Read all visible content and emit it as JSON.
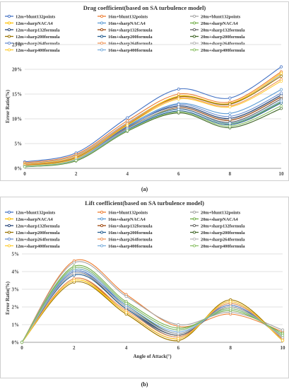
{
  "panels": [
    {
      "caption": "(a)",
      "chart_data": {
        "type": "line",
        "title": "Drag coefficient(based on SA turbulence model)",
        "xlabel": "Angle of Attack(°)",
        "ylabel": "Error Ratio(%)",
        "x": [
          0,
          2,
          4,
          6,
          8,
          10
        ],
        "xticks": [
          "0",
          "2",
          "4",
          "6",
          "8",
          "10"
        ],
        "yticks": [
          "0%",
          "5%",
          "10%",
          "15%",
          "20%",
          "25%"
        ],
        "xlim": [
          0,
          10
        ],
        "ylim": [
          0,
          25
        ],
        "grid": true,
        "legend_position": "top",
        "series": [
          {
            "name": "12m+blunt132points",
            "color": "#4472c4",
            "values": [
              1.3,
              3.1,
              10.2,
              16.0,
              14.2,
              20.5
            ]
          },
          {
            "name": "16m+blunt132points",
            "color": "#ed7d31",
            "values": [
              1.1,
              2.8,
              9.6,
              15.0,
              13.4,
              19.5
            ]
          },
          {
            "name": "20m+blunt132points",
            "color": "#a5a5a5",
            "values": [
              0.9,
              2.6,
              9.2,
              14.5,
              12.9,
              18.9
            ]
          },
          {
            "name": "12m+sharpNACA4",
            "color": "#ffc000",
            "values": [
              0.8,
              2.4,
              9.0,
              14.6,
              13.1,
              19.2
            ]
          },
          {
            "name": "16m+sharpNACA4",
            "color": "#5b9bd5",
            "values": [
              0.7,
              2.2,
              8.6,
              13.1,
              11.1,
              15.9
            ]
          },
          {
            "name": "20m+sharpNACA4",
            "color": "#70ad47",
            "values": [
              0.6,
              2.0,
              8.2,
              12.0,
              9.0,
              13.4
            ]
          },
          {
            "name": "12m+sharp132formula",
            "color": "#264478",
            "values": [
              0.6,
              2.0,
              8.4,
              12.6,
              10.1,
              14.8
            ]
          },
          {
            "name": "16m+sharp132formula",
            "color": "#9e480e",
            "values": [
              0.5,
              1.9,
              8.1,
              12.3,
              9.7,
              14.4
            ]
          },
          {
            "name": "20m+sharp132formula",
            "color": "#636363",
            "values": [
              0.5,
              1.8,
              7.9,
              12.0,
              9.3,
              14.0
            ]
          },
          {
            "name": "12m+sharp200formula",
            "color": "#997300",
            "values": [
              0.6,
              2.1,
              8.8,
              14.4,
              13.0,
              18.6
            ]
          },
          {
            "name": "16m+sharp200formula",
            "color": "#255e91",
            "values": [
              0.4,
              1.7,
              7.8,
              11.6,
              8.8,
              13.2
            ]
          },
          {
            "name": "20m+sharp200formula",
            "color": "#43682b",
            "values": [
              0.3,
              1.5,
              7.5,
              11.2,
              8.2,
              12.1
            ]
          },
          {
            "name": "12m+sharp264formula",
            "color": "#698ed0",
            "values": [
              0.5,
              1.9,
              8.3,
              12.9,
              10.5,
              15.2
            ]
          },
          {
            "name": "16m+sharp264formula",
            "color": "#f1975a",
            "values": [
              0.7,
              2.3,
              9.0,
              14.2,
              12.6,
              18.0
            ]
          },
          {
            "name": "20m+sharp264formula",
            "color": "#b7b7b7",
            "values": [
              0.4,
              1.8,
              8.0,
              12.4,
              9.9,
              14.6
            ]
          },
          {
            "name": "12m+sharp400formula",
            "color": "#ffcd33",
            "values": [
              0.5,
              2.0,
              8.7,
              14.0,
              12.4,
              17.6
            ]
          },
          {
            "name": "16m+sharp400formula",
            "color": "#7cafdd",
            "values": [
              0.4,
              1.7,
              7.9,
              11.9,
              9.1,
              13.6
            ]
          },
          {
            "name": "20m+sharp400formula",
            "color": "#8cc168",
            "values": [
              0.3,
              1.6,
              7.6,
              11.4,
              8.5,
              12.6
            ]
          }
        ]
      }
    },
    {
      "caption": "(b)",
      "chart_data": {
        "type": "line",
        "title": "Lift coefficient(based on SA turbulence model)",
        "xlabel": "Angle of Attack(°)",
        "ylabel": "Error Ratio(%)",
        "x": [
          0,
          2,
          4,
          6,
          8,
          10
        ],
        "xticks": [
          "0",
          "2",
          "4",
          "6",
          "8",
          "10"
        ],
        "yticks": [
          "0%",
          "1%",
          "2%",
          "3%",
          "4%",
          "5%"
        ],
        "xlim": [
          0,
          10
        ],
        "ylim": [
          0,
          5
        ],
        "grid": true,
        "legend_position": "top",
        "series": [
          {
            "name": "12m+blunt132points",
            "color": "#4472c4",
            "values": [
              0,
              3.9,
              2.1,
              0.5,
              2.0,
              0.3
            ]
          },
          {
            "name": "16m+blunt132points",
            "color": "#ed7d31",
            "values": [
              0,
              4.6,
              2.7,
              0.9,
              1.6,
              0.6
            ]
          },
          {
            "name": "20m+blunt132points",
            "color": "#a5a5a5",
            "values": [
              0,
              4.5,
              2.6,
              1.0,
              1.7,
              0.7
            ]
          },
          {
            "name": "12m+sharpNACA4",
            "color": "#ffc000",
            "values": [
              0,
              3.5,
              1.6,
              0.1,
              2.4,
              0.1
            ]
          },
          {
            "name": "16m+sharpNACA4",
            "color": "#5b9bd5",
            "values": [
              0,
              4.2,
              2.2,
              0.7,
              1.9,
              0.4
            ]
          },
          {
            "name": "20m+sharpNACA4",
            "color": "#70ad47",
            "values": [
              0,
              4.3,
              2.3,
              0.8,
              1.8,
              0.5
            ]
          },
          {
            "name": "12m+sharp132formula",
            "color": "#264478",
            "values": [
              0,
              4.0,
              2.0,
              0.4,
              2.1,
              0.2
            ]
          },
          {
            "name": "16m+sharp132formula",
            "color": "#9e480e",
            "values": [
              0,
              3.6,
              1.7,
              0.2,
              2.3,
              0.1
            ]
          },
          {
            "name": "20m+sharp132formula",
            "color": "#636363",
            "values": [
              0,
              3.9,
              1.9,
              0.4,
              2.0,
              0.3
            ]
          },
          {
            "name": "12m+sharp200formula",
            "color": "#997300",
            "values": [
              0,
              3.4,
              1.6,
              0.1,
              2.4,
              0.1
            ]
          },
          {
            "name": "16m+sharp200formula",
            "color": "#255e91",
            "values": [
              0,
              3.8,
              1.9,
              0.3,
              2.2,
              0.2
            ]
          },
          {
            "name": "20m+sharp200formula",
            "color": "#43682b",
            "values": [
              0,
              4.1,
              2.1,
              0.5,
              2.0,
              0.3
            ]
          },
          {
            "name": "12m+sharp264formula",
            "color": "#698ed0",
            "values": [
              0,
              4.0,
              2.0,
              0.5,
              2.1,
              0.3
            ]
          },
          {
            "name": "16m+sharp264formula",
            "color": "#f1975a",
            "values": [
              0,
              3.6,
              1.8,
              0.3,
              2.2,
              0.2
            ]
          },
          {
            "name": "20m+sharp264formula",
            "color": "#b7b7b7",
            "values": [
              0,
              3.9,
              2.0,
              0.5,
              2.0,
              0.3
            ]
          },
          {
            "name": "12m+sharp400formula",
            "color": "#ffcd33",
            "values": [
              0,
              3.5,
              1.7,
              0.2,
              2.3,
              0.1
            ]
          },
          {
            "name": "16m+sharp400formula",
            "color": "#7cafdd",
            "values": [
              0,
              4.1,
              2.1,
              0.6,
              1.9,
              0.4
            ]
          },
          {
            "name": "20m+sharp400formula",
            "color": "#8cc168",
            "values": [
              0,
              4.2,
              2.2,
              0.7,
              1.9,
              0.4
            ]
          }
        ]
      }
    }
  ]
}
